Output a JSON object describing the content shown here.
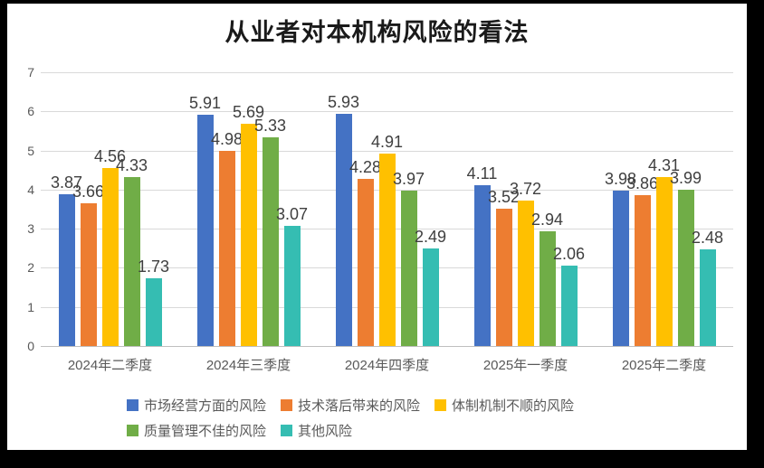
{
  "frame": {
    "background_color": "#000000",
    "panel_color": "#ffffff"
  },
  "chart_data": {
    "type": "bar",
    "title": "从业者对本机构风险的看法",
    "categories": [
      "2024年二季度",
      "2024年三季度",
      "2024年四季度",
      "2025年一季度",
      "2025年二季度"
    ],
    "series": [
      {
        "name": "市场经营方面的风险",
        "color": "#4472C4",
        "values": [
          3.87,
          5.91,
          5.93,
          4.11,
          3.98
        ]
      },
      {
        "name": "技术落后带来的风险",
        "color": "#ED7D31",
        "values": [
          3.66,
          4.98,
          4.28,
          3.52,
          3.86
        ]
      },
      {
        "name": "体制机制不顺的风险",
        "color": "#FFC000",
        "values": [
          4.56,
          5.69,
          4.91,
          3.72,
          4.31
        ]
      },
      {
        "name": "质量管理不佳的风险",
        "color": "#70AD47",
        "values": [
          4.33,
          5.33,
          3.97,
          2.94,
          3.99
        ]
      },
      {
        "name": "其他风险",
        "color": "#35BDB2",
        "values": [
          1.73,
          3.07,
          2.49,
          2.06,
          2.48
        ]
      }
    ],
    "data_labels_shown": true,
    "y_ticks": [
      0,
      1,
      2,
      3,
      4,
      5,
      6,
      7
    ],
    "ylim": [
      0,
      7
    ],
    "xlabel": "",
    "ylabel": "",
    "grid": true,
    "gridline_color": "#d9d9d9",
    "axis_line_color": "#bfbfbf",
    "tick_label_color": "#595959",
    "data_label_color": "#3f3f3f",
    "legend_position": "bottom",
    "legend_row_split": 3
  }
}
